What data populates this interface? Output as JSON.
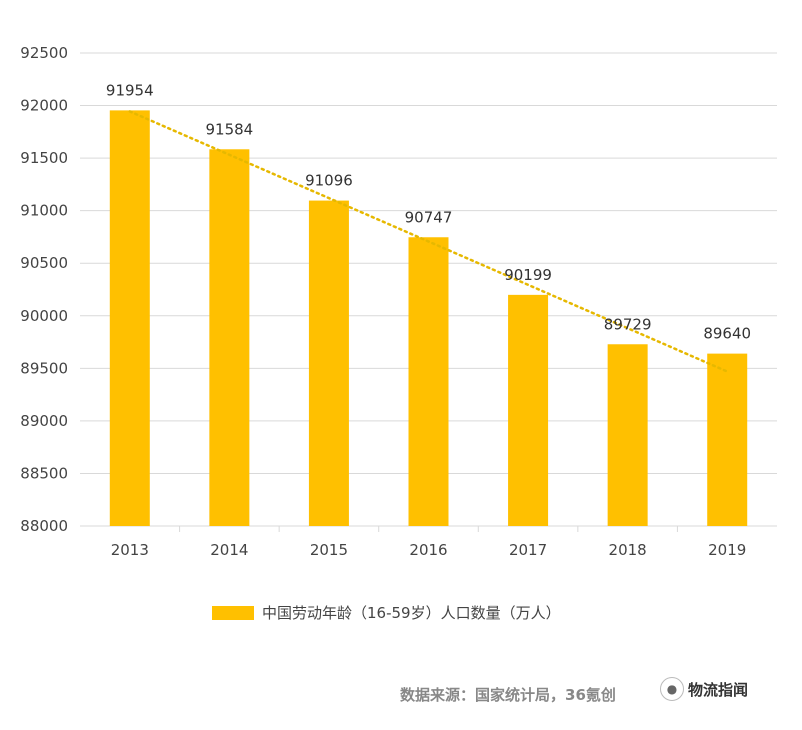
{
  "chart_data": {
    "type": "bar",
    "categories": [
      "2013",
      "2014",
      "2015",
      "2016",
      "2017",
      "2018",
      "2019"
    ],
    "series": [
      {
        "name": "中国劳动年龄（16-59岁）人口数量（万人）",
        "values": [
          91954,
          91584,
          91096,
          90747,
          90199,
          89729,
          89640
        ]
      }
    ],
    "ylim": [
      88000,
      92500
    ],
    "yticks": [
      88000,
      88500,
      89000,
      89500,
      90000,
      90500,
      91000,
      91500,
      92000,
      92500
    ],
    "trendline": {
      "type": "linear",
      "style": "dotted"
    },
    "grid": true,
    "legend_position": "bottom",
    "colors": {
      "bar": "#FFC000",
      "trend": "#E6B800",
      "grid": "#D9D9D9"
    }
  },
  "legend": {
    "label": "中国劳动年龄（16-59岁）人口数量（万人）"
  },
  "source": "数据来源：国家统计局，36氪创",
  "watermark": {
    "icon": "chat-bubble-icon",
    "text": "物流指闻"
  }
}
